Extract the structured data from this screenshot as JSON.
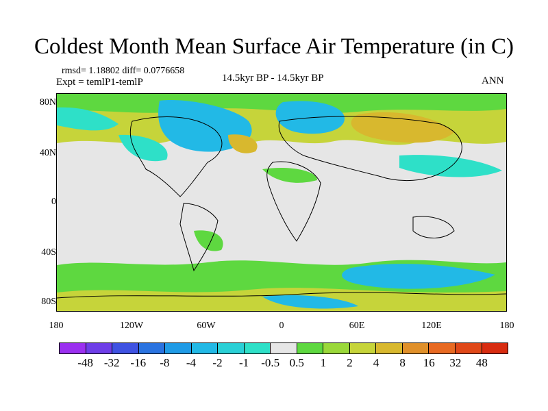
{
  "title": "Coldest Month Mean Surface Air Temperature (in C)",
  "stats": "rmsd= 1.18802 diff= 0.0776658",
  "expt": "Expt = temlP1-temlP",
  "period": "14.5kyr BP - 14.5kyr BP",
  "season": "ANN",
  "lat_ticks": [
    "80N",
    "40N",
    "0",
    "40S",
    "80S"
  ],
  "lon_ticks": [
    "180",
    "120W",
    "60W",
    "0",
    "60E",
    "120E",
    "180"
  ],
  "colorbar": {
    "colors": [
      "#9b30f0",
      "#6e3ee8",
      "#3f52e2",
      "#2a73e0",
      "#1f9be6",
      "#22b9e6",
      "#2ad0d6",
      "#2ee0c8",
      "#e6e6e6",
      "#5ed840",
      "#9ad83a",
      "#c6d43a",
      "#d8b82e",
      "#e0902a",
      "#e86a22",
      "#e04818",
      "#d82c10"
    ],
    "labels": [
      "-48",
      "-32",
      "-16",
      "-8",
      "-4",
      "-2",
      "-1",
      "-0.5",
      "0.5",
      "1",
      "2",
      "4",
      "8",
      "16",
      "32",
      "48"
    ]
  }
}
